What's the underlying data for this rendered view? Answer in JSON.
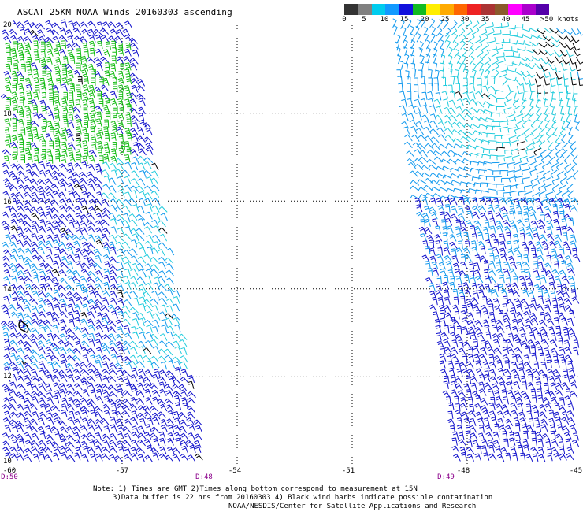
{
  "title": "ASCAT 25KM NOAA Winds 20160303 ascending",
  "colorbar": {
    "labels": [
      "0",
      "5",
      "10",
      "15",
      "20",
      "25",
      "30",
      "35",
      "40",
      "45",
      ">50 knots"
    ],
    "colors": [
      "#333333",
      "#808080",
      "#00ccee",
      "#1199ff",
      "#1111dd",
      "#11bb22",
      "#ffee00",
      "#ffaa00",
      "#ff6600",
      "#ee2222",
      "#aa3333",
      "#8b5a2b",
      "#ff00ff",
      "#aa00cc",
      "#5500aa"
    ]
  },
  "latitudes": [
    "20",
    "18",
    "16",
    "14",
    "12",
    "10"
  ],
  "longitudes": [
    "-60",
    "-57",
    "-54",
    "-51",
    "-48",
    "-45"
  ],
  "times": [
    "D:50",
    "D:48",
    "D:49"
  ],
  "note": {
    "line1": "Note: 1) Times are GMT 2)Times along bottom correspond to measurement at 15N",
    "line2": "3)Data buffer is 22 hrs from 20160303 4) Black wind barbs indicate possible contamination",
    "line3": "NOAA/NESDIS/Center for Satellite Applications and Research"
  },
  "map_extent": {
    "lon_range": [
      -60,
      -45
    ],
    "lat_range": [
      10,
      20
    ]
  },
  "barb_colors": {
    "blue": "#1111cc",
    "cyan": "#22ccdd",
    "light_blue": "#1199ee",
    "green": "#11bb11",
    "black": "#000000"
  }
}
